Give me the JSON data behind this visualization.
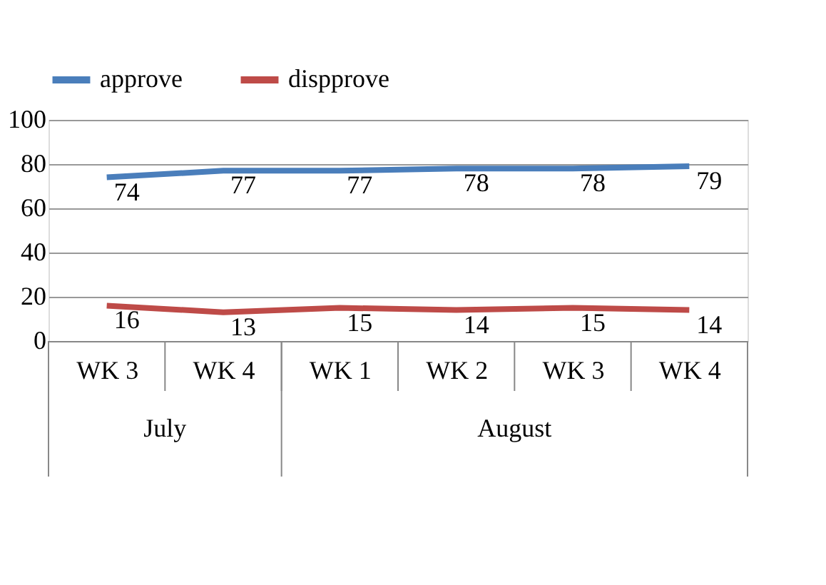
{
  "chart_data": {
    "type": "line",
    "categories": [
      "WK 3",
      "WK 4",
      "WK 1",
      "WK 2",
      "WK 3",
      "WK 4"
    ],
    "series": [
      {
        "name": "approve",
        "color": "#4a7ebb",
        "values": [
          74,
          77,
          77,
          78,
          78,
          79
        ]
      },
      {
        "name": "dispprove",
        "color": "#be4b48",
        "values": [
          16,
          13,
          15,
          14,
          15,
          14
        ]
      }
    ],
    "annotations": [
      "July",
      "August"
    ],
    "ylim": [
      0,
      100
    ],
    "yticks": [
      0,
      20,
      40,
      60,
      80,
      100
    ],
    "grid": "y",
    "legend": "top",
    "data_labels": true,
    "marker": "none",
    "line_style": "solid"
  }
}
